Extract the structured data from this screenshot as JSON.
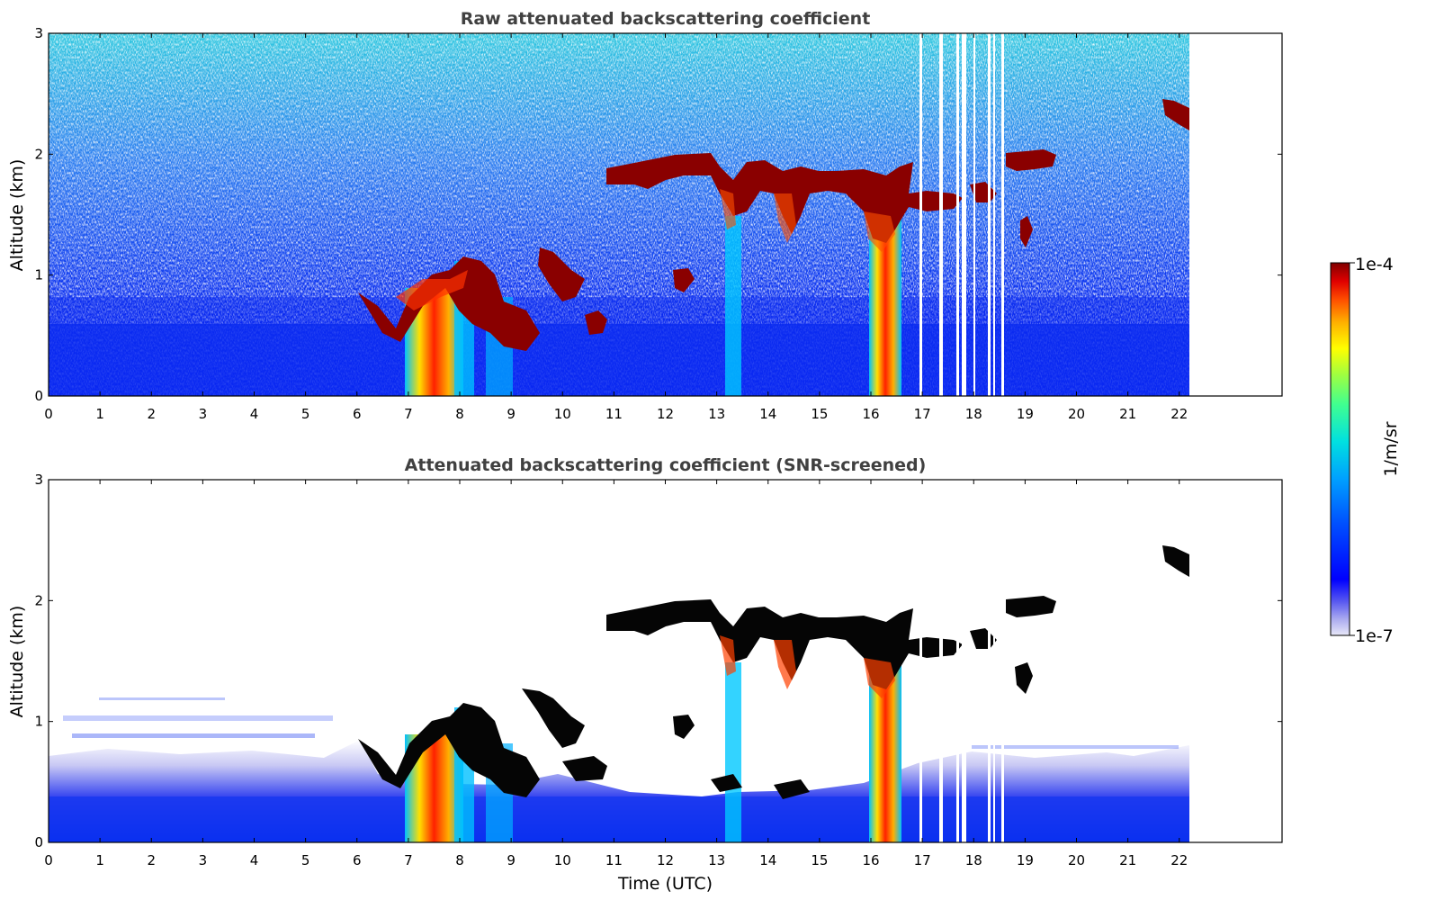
{
  "chart_data": [
    {
      "type": "heatmap",
      "title": "Raw attenuated backscattering coefficient",
      "xlabel": "",
      "ylabel": "Altitude (km)",
      "xlim": [
        0,
        24
      ],
      "ylim": [
        0,
        3
      ],
      "x_ticks": [
        "0",
        "1",
        "2",
        "3",
        "4",
        "5",
        "6",
        "7",
        "8",
        "9",
        "10",
        "11",
        "12",
        "13",
        "14",
        "15",
        "16",
        "17",
        "18",
        "19",
        "20",
        "21",
        "22"
      ],
      "y_ticks": [
        "0",
        "1",
        "2",
        "3"
      ],
      "data_end_time": 22.2,
      "features": [
        {
          "name": "boundary layer aerosol",
          "t_range": [
            0,
            22.2
          ],
          "alt_range": [
            0,
            0.5
          ],
          "level": "low"
        },
        {
          "name": "noisy background",
          "t_range": [
            0,
            22.2
          ],
          "alt_range": [
            0.5,
            3
          ],
          "level": "noise"
        },
        {
          "name": "cloud base 0.4-1.2 km",
          "t_range": [
            6.0,
            10.8
          ],
          "alt_range": [
            0.4,
            1.2
          ],
          "level": "high"
        },
        {
          "name": "cloud layer ~1.8-2.0 km",
          "t_range": [
            10.8,
            19.5
          ],
          "alt_range": [
            1.5,
            2.0
          ],
          "level": "high"
        },
        {
          "name": "precipitation streaks",
          "t_range": [
            7.0,
            8.5
          ],
          "alt_range": [
            0,
            1.0
          ],
          "level": "high"
        },
        {
          "name": "precipitation streaks",
          "t_range": [
            16.0,
            16.6
          ],
          "alt_range": [
            0,
            1.5
          ],
          "level": "high"
        },
        {
          "name": "high cloud",
          "t_range": [
            21.7,
            22.2
          ],
          "alt_range": [
            2.2,
            2.45
          ],
          "level": "high"
        }
      ]
    },
    {
      "type": "heatmap",
      "title": "Attenuated backscattering coefficient (SNR-screened)",
      "xlabel": "Time (UTC)",
      "ylabel": "Altitude (km)",
      "xlim": [
        0,
        24
      ],
      "ylim": [
        0,
        3
      ],
      "x_ticks": [
        "0",
        "1",
        "2",
        "3",
        "4",
        "5",
        "6",
        "7",
        "8",
        "9",
        "10",
        "11",
        "12",
        "13",
        "14",
        "15",
        "16",
        "17",
        "18",
        "19",
        "20",
        "21",
        "22"
      ],
      "y_ticks": [
        "0",
        "1",
        "2",
        "3"
      ],
      "data_end_time": 22.2,
      "features": [
        {
          "name": "boundary layer aerosol",
          "t_range": [
            0,
            22.2
          ],
          "alt_range": [
            0,
            0.7
          ],
          "level": "low"
        },
        {
          "name": "cloud base 0.4-1.2 km",
          "t_range": [
            6.0,
            10.8
          ],
          "alt_range": [
            0.4,
            1.2
          ],
          "level": "saturated"
        },
        {
          "name": "cloud layer ~1.8-2.0 km",
          "t_range": [
            10.8,
            19.5
          ],
          "alt_range": [
            1.5,
            2.0
          ],
          "level": "saturated"
        },
        {
          "name": "high cloud",
          "t_range": [
            21.7,
            22.2
          ],
          "alt_range": [
            2.2,
            2.45
          ],
          "level": "saturated"
        }
      ]
    }
  ],
  "colorbar": {
    "label": "1/m/sr",
    "max_label": "1e-4",
    "min_label": "1e-7",
    "scale": "log",
    "colormap": "jet",
    "colors": [
      "#e8e8f8",
      "#b0b0f0",
      "#5a5af0",
      "#0000ff",
      "#0050ff",
      "#00a0ff",
      "#00e0e0",
      "#40ff90",
      "#a0ff40",
      "#ffff00",
      "#ffb000",
      "#ff5000",
      "#e00000",
      "#800000"
    ]
  }
}
